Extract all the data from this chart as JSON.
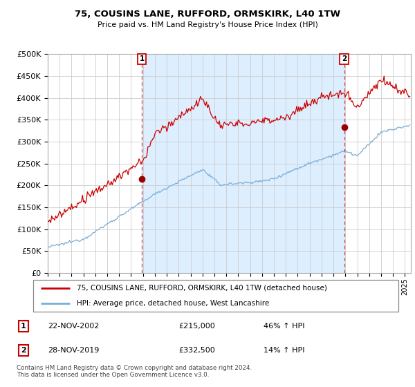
{
  "title": "75, COUSINS LANE, RUFFORD, ORMSKIRK, L40 1TW",
  "subtitle": "Price paid vs. HM Land Registry's House Price Index (HPI)",
  "ylabel_ticks": [
    "£0",
    "£50K",
    "£100K",
    "£150K",
    "£200K",
    "£250K",
    "£300K",
    "£350K",
    "£400K",
    "£450K",
    "£500K"
  ],
  "ytick_vals": [
    0,
    50000,
    100000,
    150000,
    200000,
    250000,
    300000,
    350000,
    400000,
    450000,
    500000
  ],
  "ylim": [
    0,
    500000
  ],
  "xlim_start": 1995.0,
  "xlim_end": 2025.5,
  "red_line_color": "#cc0000",
  "blue_line_color": "#7aaed6",
  "shade_color": "#ddeeff",
  "marker_color": "#990000",
  "sale1_x": 2002.9,
  "sale1_y": 215000,
  "sale2_x": 2019.9,
  "sale2_y": 332500,
  "vline1_x": 2002.9,
  "vline2_x": 2019.9,
  "vline_color": "#cc0000",
  "legend_label1": "75, COUSINS LANE, RUFFORD, ORMSKIRK, L40 1TW (detached house)",
  "legend_label2": "HPI: Average price, detached house, West Lancashire",
  "table_row1": [
    "1",
    "22-NOV-2002",
    "£215,000",
    "46% ↑ HPI"
  ],
  "table_row2": [
    "2",
    "28-NOV-2019",
    "£332,500",
    "14% ↑ HPI"
  ],
  "footnote": "Contains HM Land Registry data © Crown copyright and database right 2024.\nThis data is licensed under the Open Government Licence v3.0.",
  "bg_color": "#ffffff",
  "grid_color": "#cccccc"
}
